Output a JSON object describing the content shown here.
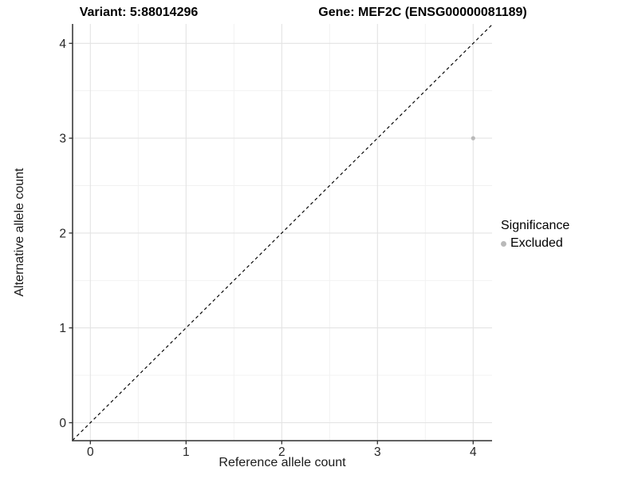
{
  "chart_data": {
    "type": "scatter",
    "titles": {
      "left": "Variant: 5:88014296",
      "right": "Gene: MEF2C (ENSG00000081189)"
    },
    "xlabel": "Reference allele count",
    "ylabel": "Alternative allele count",
    "x_ticks": [
      0,
      1,
      2,
      3,
      4
    ],
    "y_ticks": [
      0,
      1,
      2,
      3,
      4
    ],
    "xlim": [
      -0.19,
      4.2
    ],
    "ylim": [
      -0.19,
      4.2
    ],
    "grid": {
      "major": true,
      "minor": true,
      "minor_step": 0.5
    },
    "reference_line": {
      "kind": "identity",
      "style": "dashed",
      "color": "#000000"
    },
    "series": [
      {
        "name": "Excluded",
        "points": [
          {
            "x": 4,
            "y": 3
          }
        ],
        "color": "#b9b9b9"
      }
    ],
    "legend": {
      "title": "Significance",
      "position": "right",
      "items": [
        {
          "label": "Excluded",
          "color": "#b9b9b9"
        }
      ]
    },
    "colors": {
      "background": "#ffffff",
      "grid_major": "#e3e3e3",
      "grid_minor": "#f1f1f1",
      "axis_line": "#2f2f2f",
      "tick_label": "#262626",
      "point": "#b9b9b9",
      "dashed_line": "#000000"
    }
  }
}
